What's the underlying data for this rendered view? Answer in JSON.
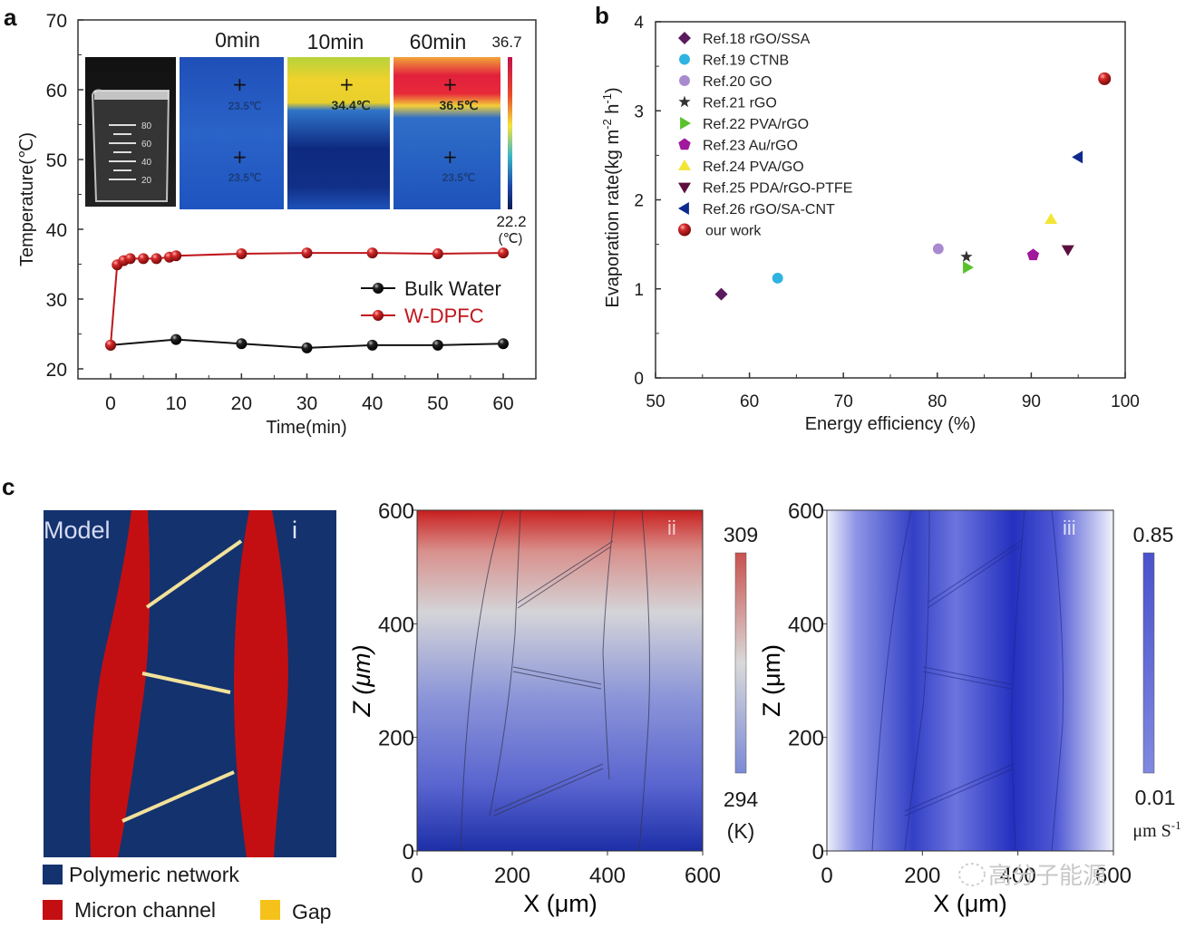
{
  "figure": {
    "panels": [
      "a",
      "b",
      "c"
    ],
    "watermark": "高分子能源"
  },
  "chart_data": [
    {
      "id": "a",
      "type": "line",
      "title": "",
      "xlabel": "Time(min)",
      "ylabel": "Temperature(℃)",
      "xlim": [
        -5,
        65
      ],
      "ylim": [
        20,
        70
      ],
      "xticks": [
        "0",
        "10",
        "20",
        "30",
        "40",
        "50",
        "60"
      ],
      "xtick_values": [
        0,
        10,
        20,
        30,
        40,
        50,
        60
      ],
      "yticks": [
        "20",
        "30",
        "40",
        "50",
        "60",
        "70"
      ],
      "ytick_values": [
        20,
        30,
        40,
        50,
        60,
        70
      ],
      "legend": "center-right",
      "series": [
        {
          "name": "Bulk Water",
          "color": "#111111",
          "x": [
            0,
            10,
            20,
            30,
            40,
            50,
            60
          ],
          "y": [
            23.4,
            24.2,
            23.6,
            23.0,
            23.4,
            23.4,
            23.6
          ]
        },
        {
          "name": "W-DPFC",
          "color": "#c0161c",
          "x": [
            0,
            1,
            2,
            3,
            5,
            7,
            9,
            10,
            20,
            30,
            40,
            50,
            60
          ],
          "y": [
            23.4,
            34.9,
            35.5,
            35.8,
            35.8,
            35.8,
            36.0,
            36.2,
            36.5,
            36.6,
            36.6,
            36.5,
            36.6
          ]
        }
      ],
      "inset": {
        "image_titles": [
          "0min",
          "10min",
          "60min"
        ],
        "spot_temps": [
          "23.5℃",
          "34.4℃",
          "36.5℃"
        ],
        "lower_spot_temps": [
          "23.5℃",
          "",
          "23.5℃"
        ],
        "beaker_marks": [
          "80",
          "60",
          "40",
          "20"
        ],
        "colorbar_max": "36.7",
        "colorbar_min": "22.2",
        "colorbar_unit": "(℃)"
      }
    },
    {
      "id": "b",
      "type": "scatter",
      "title": "",
      "xlabel": "Energy efficiency (%)",
      "ylabel": "Evaporation rate(kg m⁻² h⁻¹)",
      "ylabel_parts": [
        "Evaporation rate(kg m",
        "-2",
        " h",
        "-1",
        ")"
      ],
      "xlim": [
        50,
        100
      ],
      "ylim": [
        0,
        4
      ],
      "xticks": [
        "50",
        "60",
        "70",
        "80",
        "90",
        "100"
      ],
      "xtick_values": [
        50,
        60,
        70,
        80,
        90,
        100
      ],
      "yticks": [
        "0",
        "1",
        "2",
        "3",
        "4"
      ],
      "ytick_values": [
        0,
        1,
        2,
        3,
        4
      ],
      "legend": "top-left",
      "series": [
        {
          "name": "Ref.18 rGO/SSA",
          "marker": "diamond",
          "color": "#5a1a5e",
          "x": [
            57.0
          ],
          "y": [
            0.94
          ]
        },
        {
          "name": "Ref.19 CTNB",
          "marker": "circle",
          "color": "#2fb3e0",
          "x": [
            63.0
          ],
          "y": [
            1.12
          ]
        },
        {
          "name": "Ref.20 GO",
          "marker": "circle",
          "color": "#a98ad0",
          "x": [
            80.1
          ],
          "y": [
            1.45
          ]
        },
        {
          "name": "Ref.21 rGO",
          "marker": "star",
          "color": "#333333",
          "x": [
            83.1
          ],
          "y": [
            1.36
          ]
        },
        {
          "name": "Ref.22 PVA/rGO",
          "marker": "triangle-right",
          "color": "#58c22c",
          "x": [
            83.2
          ],
          "y": [
            1.24
          ]
        },
        {
          "name": "Ref.23 Au/rGO",
          "marker": "pentagon",
          "color": "#a0189c",
          "x": [
            90.2
          ],
          "y": [
            1.38
          ]
        },
        {
          "name": "Ref.24 PVA/GO",
          "marker": "triangle-up",
          "color": "#f2e534",
          "x": [
            92.1
          ],
          "y": [
            1.78
          ]
        },
        {
          "name": "Ref.25 PDA/rGO-PTFE",
          "marker": "triangle-down",
          "color": "#5c0f3e",
          "x": [
            93.9
          ],
          "y": [
            1.44
          ]
        },
        {
          "name": "Ref.26 rGO/SA-CNT",
          "marker": "triangle-left",
          "color": "#0d2a8c",
          "x": [
            95.0
          ],
          "y": [
            2.48
          ]
        },
        {
          "name": "our work",
          "marker": "sphere",
          "color": "#c4141c",
          "x": [
            97.8
          ],
          "y": [
            3.36
          ]
        }
      ]
    },
    {
      "id": "c-i",
      "type": "heatmap",
      "title": "Model",
      "subpanel": "i",
      "legend": "bottom",
      "legend_entries": [
        {
          "label": "Polymeric network",
          "color": "#14326e"
        },
        {
          "label": "Micron channel",
          "color": "#c40f12"
        },
        {
          "label": "Gap",
          "color": "#f5c21b"
        }
      ]
    },
    {
      "id": "c-ii",
      "type": "heatmap",
      "subpanel": "ii",
      "xlabel": "X (μm)",
      "ylabel": "Z (μm)",
      "xlim": [
        0,
        600
      ],
      "ylim": [
        0,
        600
      ],
      "xticks": [
        "0",
        "200",
        "400",
        "600"
      ],
      "yticks": [
        "0",
        "200",
        "400",
        "600"
      ],
      "colorbar": {
        "max": "309",
        "min": "294",
        "unit": "(K)",
        "colors": [
          "#7b8ad6",
          "#d9d9d9",
          "#c9524e"
        ]
      }
    },
    {
      "id": "c-iii",
      "type": "heatmap",
      "subpanel": "iii",
      "xlabel": "X (μm)",
      "ylabel": "Z (μm)",
      "xlim": [
        0,
        600
      ],
      "ylim": [
        0,
        600
      ],
      "xticks": [
        "0",
        "200",
        "400",
        "600"
      ],
      "yticks": [
        "0",
        "200",
        "400",
        "600"
      ],
      "colorbar": {
        "max": "0.85",
        "min": "0.01",
        "unit": "μm S",
        "unit_sup": "-1",
        "colors": [
          "#8088e0",
          "#4a52cc"
        ]
      }
    }
  ]
}
